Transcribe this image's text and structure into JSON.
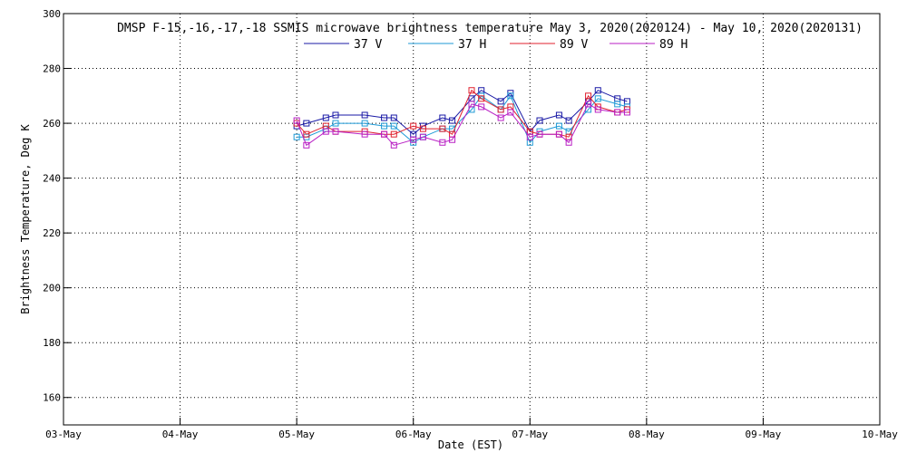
{
  "chart_data": {
    "type": "line",
    "title": "DMSP F-15,-16,-17,-18 SSMIS microwave brightness temperature May  3, 2020(2020124) - May 10, 2020(2020131)",
    "xlabel": "Date (EST)",
    "ylabel": "Brightness Temperature, Deg K",
    "xlim": [
      "2020-05-03 00:00",
      "2020-05-10 00:00"
    ],
    "ylim": [
      150,
      300
    ],
    "x_ticks": [
      "03-May",
      "04-May",
      "05-May",
      "06-May",
      "07-May",
      "08-May",
      "09-May",
      "10-May"
    ],
    "y_ticks": [
      160,
      180,
      200,
      220,
      240,
      260,
      280,
      300
    ],
    "grid": true,
    "legend": "top",
    "series": [
      {
        "name": "37 V",
        "color": "#1a1aa6",
        "points": [
          {
            "x": "2020-05-05 00:00",
            "y": 259
          },
          {
            "x": "2020-05-05 02:00",
            "y": 260
          },
          {
            "x": "2020-05-05 06:00",
            "y": 262
          },
          {
            "x": "2020-05-05 08:00",
            "y": 263
          },
          {
            "x": "2020-05-05 14:00",
            "y": 263
          },
          {
            "x": "2020-05-05 18:00",
            "y": 262
          },
          {
            "x": "2020-05-05 20:00",
            "y": 262
          },
          {
            "x": "2020-05-06 00:00",
            "y": 256
          },
          {
            "x": "2020-05-06 02:00",
            "y": 259
          },
          {
            "x": "2020-05-06 06:00",
            "y": 262
          },
          {
            "x": "2020-05-06 08:00",
            "y": 261
          },
          {
            "x": "2020-05-06 12:00",
            "y": 269
          },
          {
            "x": "2020-05-06 14:00",
            "y": 272
          },
          {
            "x": "2020-05-06 18:00",
            "y": 268
          },
          {
            "x": "2020-05-06 20:00",
            "y": 271
          },
          {
            "x": "2020-05-07 00:00",
            "y": 257
          },
          {
            "x": "2020-05-07 02:00",
            "y": 261
          },
          {
            "x": "2020-05-07 06:00",
            "y": 263
          },
          {
            "x": "2020-05-07 08:00",
            "y": 261
          },
          {
            "x": "2020-05-07 12:00",
            "y": 268
          },
          {
            "x": "2020-05-07 14:00",
            "y": 272
          },
          {
            "x": "2020-05-07 18:00",
            "y": 269
          },
          {
            "x": "2020-05-07 20:00",
            "y": 268
          }
        ]
      },
      {
        "name": "37 H",
        "color": "#1e9ad6",
        "points": [
          {
            "x": "2020-05-05 00:00",
            "y": 255
          },
          {
            "x": "2020-05-05 02:00",
            "y": 255
          },
          {
            "x": "2020-05-05 06:00",
            "y": 258
          },
          {
            "x": "2020-05-05 08:00",
            "y": 260
          },
          {
            "x": "2020-05-05 14:00",
            "y": 260
          },
          {
            "x": "2020-05-05 18:00",
            "y": 259
          },
          {
            "x": "2020-05-05 20:00",
            "y": 259
          },
          {
            "x": "2020-05-06 00:00",
            "y": 253
          },
          {
            "x": "2020-05-06 02:00",
            "y": 255
          },
          {
            "x": "2020-05-06 06:00",
            "y": 258
          },
          {
            "x": "2020-05-06 08:00",
            "y": 258
          },
          {
            "x": "2020-05-06 12:00",
            "y": 265
          },
          {
            "x": "2020-05-06 14:00",
            "y": 270
          },
          {
            "x": "2020-05-06 18:00",
            "y": 265
          },
          {
            "x": "2020-05-06 20:00",
            "y": 270
          },
          {
            "x": "2020-05-07 00:00",
            "y": 253
          },
          {
            "x": "2020-05-07 02:00",
            "y": 257
          },
          {
            "x": "2020-05-07 06:00",
            "y": 259
          },
          {
            "x": "2020-05-07 08:00",
            "y": 257
          },
          {
            "x": "2020-05-07 12:00",
            "y": 265
          },
          {
            "x": "2020-05-07 14:00",
            "y": 269
          },
          {
            "x": "2020-05-07 18:00",
            "y": 267
          },
          {
            "x": "2020-05-07 20:00",
            "y": 266
          }
        ]
      },
      {
        "name": "89 V",
        "color": "#e0202e",
        "points": [
          {
            "x": "2020-05-05 00:00",
            "y": 260
          },
          {
            "x": "2020-05-05 02:00",
            "y": 256
          },
          {
            "x": "2020-05-05 06:00",
            "y": 259
          },
          {
            "x": "2020-05-05 08:00",
            "y": 257
          },
          {
            "x": "2020-05-05 14:00",
            "y": 257
          },
          {
            "x": "2020-05-05 18:00",
            "y": 256
          },
          {
            "x": "2020-05-05 20:00",
            "y": 256
          },
          {
            "x": "2020-05-06 00:00",
            "y": 259
          },
          {
            "x": "2020-05-06 02:00",
            "y": 258
          },
          {
            "x": "2020-05-06 06:00",
            "y": 258
          },
          {
            "x": "2020-05-06 08:00",
            "y": 256
          },
          {
            "x": "2020-05-06 12:00",
            "y": 272
          },
          {
            "x": "2020-05-06 14:00",
            "y": 269
          },
          {
            "x": "2020-05-06 18:00",
            "y": 265
          },
          {
            "x": "2020-05-06 20:00",
            "y": 266
          },
          {
            "x": "2020-05-07 00:00",
            "y": 257
          },
          {
            "x": "2020-05-07 02:00",
            "y": 256
          },
          {
            "x": "2020-05-07 06:00",
            "y": 256
          },
          {
            "x": "2020-05-07 08:00",
            "y": 255
          },
          {
            "x": "2020-05-07 12:00",
            "y": 270
          },
          {
            "x": "2020-05-07 14:00",
            "y": 266
          },
          {
            "x": "2020-05-07 18:00",
            "y": 264
          },
          {
            "x": "2020-05-07 20:00",
            "y": 265
          }
        ]
      },
      {
        "name": "89 H",
        "color": "#b81fc4",
        "points": [
          {
            "x": "2020-05-05 00:00",
            "y": 261
          },
          {
            "x": "2020-05-05 02:00",
            "y": 252
          },
          {
            "x": "2020-05-05 06:00",
            "y": 257
          },
          {
            "x": "2020-05-05 08:00",
            "y": 257
          },
          {
            "x": "2020-05-05 14:00",
            "y": 256
          },
          {
            "x": "2020-05-05 18:00",
            "y": 256
          },
          {
            "x": "2020-05-05 20:00",
            "y": 252
          },
          {
            "x": "2020-05-06 00:00",
            "y": 254
          },
          {
            "x": "2020-05-06 02:00",
            "y": 255
          },
          {
            "x": "2020-05-06 06:00",
            "y": 253
          },
          {
            "x": "2020-05-06 08:00",
            "y": 254
          },
          {
            "x": "2020-05-06 12:00",
            "y": 267
          },
          {
            "x": "2020-05-06 14:00",
            "y": 266
          },
          {
            "x": "2020-05-06 18:00",
            "y": 262
          },
          {
            "x": "2020-05-06 20:00",
            "y": 264
          },
          {
            "x": "2020-05-07 00:00",
            "y": 255
          },
          {
            "x": "2020-05-07 02:00",
            "y": 256
          },
          {
            "x": "2020-05-07 06:00",
            "y": 256
          },
          {
            "x": "2020-05-07 08:00",
            "y": 253
          },
          {
            "x": "2020-05-07 12:00",
            "y": 267
          },
          {
            "x": "2020-05-07 14:00",
            "y": 265
          },
          {
            "x": "2020-05-07 18:00",
            "y": 264
          },
          {
            "x": "2020-05-07 20:00",
            "y": 264
          }
        ]
      }
    ]
  }
}
